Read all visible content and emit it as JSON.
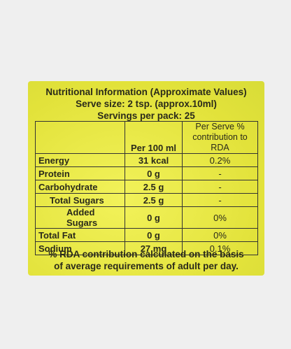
{
  "header": {
    "lines": [
      "Nutritional Information (Approximate Values)",
      "Serve size: 2 tsp. (approx.10ml)",
      "Servings per pack: 25"
    ]
  },
  "table": {
    "columns": [
      "Per 100 ml",
      "Per Serve % contribution to RDA"
    ],
    "rows": [
      [
        "Energy",
        "31 kcal",
        "0.2%"
      ],
      [
        "Protein",
        "0 g",
        "-"
      ],
      [
        "Carbohydrate",
        "2.5 g",
        "-"
      ],
      [
        "Total Sugars",
        "2.5 g",
        "-"
      ],
      [
        "Added Sugars",
        "0 g",
        "0%"
      ],
      [
        "Total Fat",
        "0 g",
        "0%"
      ],
      [
        "Sodium",
        "27 mg",
        "0.1%"
      ]
    ]
  },
  "footer": {
    "lines": [
      "% RDA contribution calculated on the basis",
      "of average requirements of adult per day."
    ]
  }
}
